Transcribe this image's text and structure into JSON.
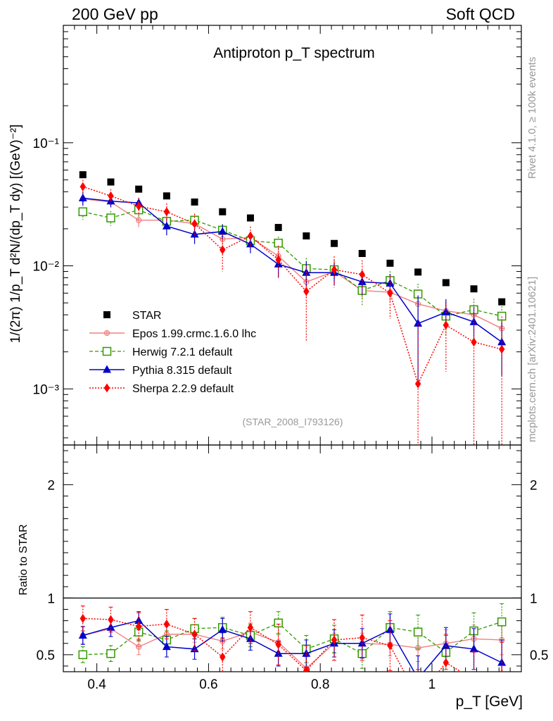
{
  "header": {
    "left": "200 GeV pp",
    "right": "Soft QCD"
  },
  "side_text": {
    "upper": "Rivet 4.1.0, ≥ 100k events",
    "lower": "mcplots.cern.ch [arXiv:2401.10621]"
  },
  "watermark": "(STAR_2008_I793126)",
  "colors": {
    "STAR": "#000000",
    "Epos": "#f08080",
    "Herwig": "#339900",
    "Pythia": "#0000cc",
    "Sherpa": "#ff0000"
  },
  "chart_data": {
    "type": "scatter",
    "title": "Antiproton p_T spectrum",
    "xlabel": "p_T [GeV]",
    "ylabel": "1/(2π) 1/p_T d²N/(dp_T dy) [(GeV)⁻²]",
    "ratio_ylabel": "Ratio to STAR",
    "xlim": [
      0.34,
      1.16
    ],
    "ylim": [
      0.00035,
      0.9
    ],
    "yscale": "log",
    "ratio_ylim": [
      0.35,
      2.35
    ],
    "x_ticks": [
      0.4,
      0.6,
      0.8,
      1
    ],
    "x_tick_labels": [
      "0.4",
      "0.6",
      "0.8",
      "1"
    ],
    "y_ticks": [
      0.001,
      0.01,
      0.1
    ],
    "y_tick_labels": [
      "10⁻³",
      "10⁻²",
      "10⁻¹"
    ],
    "ratio_ticks": [
      0.5,
      1,
      2
    ],
    "ratio_tick_labels": [
      "0.5",
      "1",
      "2"
    ],
    "x": [
      0.375,
      0.425,
      0.475,
      0.525,
      0.575,
      0.625,
      0.675,
      0.725,
      0.775,
      0.825,
      0.875,
      0.925,
      0.975,
      1.025,
      1.075,
      1.125
    ],
    "series": [
      {
        "name": "STAR",
        "key": "STAR",
        "values": [
          0.055,
          0.048,
          0.042,
          0.037,
          0.033,
          0.0275,
          0.0245,
          0.0205,
          0.0175,
          0.0152,
          0.0126,
          0.0105,
          0.0089,
          0.0073,
          0.0065,
          0.0051
        ],
        "ratio": null,
        "ratio_err": null
      },
      {
        "name": "Epos 1.99.crmc.1.6.0 lhc",
        "key": "Epos",
        "values": [
          0.035,
          0.033,
          0.0235,
          0.0235,
          0.022,
          0.0165,
          0.017,
          0.012,
          0.0074,
          0.009,
          0.0063,
          0.0061,
          0.0049,
          0.0043,
          0.004,
          0.0031
        ],
        "ratio": [
          0.67,
          0.73,
          0.57,
          0.68,
          0.68,
          0.62,
          0.7,
          0.61,
          0.38,
          0.6,
          0.6,
          0.59,
          0.56,
          0.6,
          0.64,
          0.63
        ],
        "ratio_err": [
          0.07,
          0.07,
          0.07,
          0.07,
          0.07,
          0.07,
          0.08,
          0.08,
          0.1,
          0.09,
          0.09,
          0.1,
          0.12,
          0.12,
          0.12,
          0.13
        ]
      },
      {
        "name": "Herwig 7.2.1 default",
        "key": "Herwig",
        "values": [
          0.0275,
          0.0245,
          0.0285,
          0.023,
          0.0235,
          0.0195,
          0.016,
          0.0153,
          0.0095,
          0.0093,
          0.0063,
          0.0076,
          0.0059,
          0.0039,
          0.0044,
          0.0039
        ],
        "ratio": [
          0.5,
          0.51,
          0.7,
          0.63,
          0.73,
          0.74,
          0.67,
          0.78,
          0.55,
          0.64,
          0.51,
          0.74,
          0.7,
          0.52,
          0.71,
          0.79
        ],
        "ratio_err": [
          0.07,
          0.07,
          0.08,
          0.08,
          0.09,
          0.09,
          0.1,
          0.1,
          0.12,
          0.12,
          0.13,
          0.14,
          0.15,
          0.15,
          0.16,
          0.16
        ]
      },
      {
        "name": "Pythia 8.315 default",
        "key": "Pythia",
        "values": [
          0.0355,
          0.0335,
          0.0325,
          0.021,
          0.018,
          0.019,
          0.015,
          0.0103,
          0.0088,
          0.0088,
          0.0074,
          0.0072,
          0.0034,
          0.0042,
          0.0035,
          0.0024
        ],
        "ratio": [
          0.67,
          0.74,
          0.8,
          0.57,
          0.55,
          0.72,
          0.64,
          0.51,
          0.51,
          0.6,
          0.6,
          0.72,
          0.29,
          0.58,
          0.55,
          0.43
        ],
        "ratio_err": [
          0.08,
          0.08,
          0.08,
          0.09,
          0.09,
          0.1,
          0.1,
          0.11,
          0.12,
          0.12,
          0.13,
          0.14,
          0.2,
          0.16,
          0.18,
          0.2
        ]
      },
      {
        "name": "Sherpa 2.2.9 default",
        "key": "Sherpa",
        "values": [
          0.044,
          0.037,
          0.0305,
          0.0275,
          0.022,
          0.0135,
          0.0175,
          0.0112,
          0.0062,
          0.0093,
          0.0085,
          0.006,
          0.0011,
          0.0033,
          0.0024,
          0.0021
        ],
        "ratio": [
          0.82,
          0.81,
          0.75,
          0.77,
          0.68,
          0.48,
          0.74,
          0.59,
          0.36,
          0.63,
          0.65,
          0.58,
          0.12,
          0.43,
          0.28,
          0.33
        ],
        "ratio_err": [
          0.11,
          0.11,
          0.12,
          0.13,
          0.14,
          0.16,
          0.14,
          0.18,
          0.22,
          0.18,
          0.2,
          0.22,
          0.25,
          0.25,
          0.25,
          0.28
        ]
      }
    ]
  }
}
